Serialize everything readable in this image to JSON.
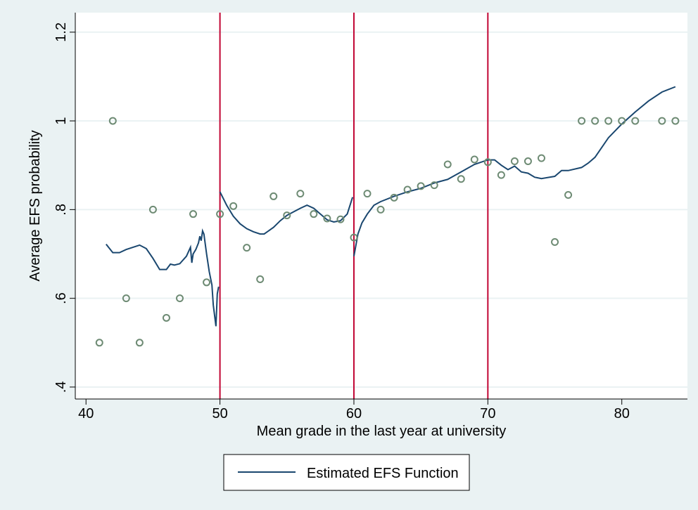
{
  "chart_data": {
    "type": "line",
    "x_label": "Mean grade in the last year at university",
    "y_label": "Average EFS probability",
    "xlim": [
      39.2,
      84.9
    ],
    "ylim": [
      0.373,
      1.244
    ],
    "xticks": [
      40,
      50,
      60,
      70,
      80
    ],
    "yticks": [
      {
        "value": 0.4,
        "label": ".4"
      },
      {
        "value": 0.6,
        "label": ".6"
      },
      {
        "value": 0.8,
        "label": ".8"
      },
      1,
      1.2
    ],
    "grid": true,
    "vlines": [
      50,
      60,
      70
    ],
    "vline_color": "#c10534",
    "series": [
      {
        "name": "Estimated EFS Function",
        "type": "line",
        "color": "#1a476f",
        "x": [
          41.5,
          42,
          42.5,
          43,
          44,
          44.5,
          45,
          45.5,
          46,
          46.3,
          46.6,
          47,
          47.5,
          47.8,
          47.9,
          48,
          48.2,
          48.4,
          48.5,
          48.6,
          48.7,
          48.8,
          49,
          49.2,
          49.4,
          49.5,
          49.7,
          49.8,
          49.9,
          null,
          50,
          50.5,
          51,
          51.5,
          52,
          52.5,
          53,
          53.3,
          54,
          54.5,
          55,
          55.5,
          56,
          56.5,
          57,
          57.5,
          58,
          58.5,
          59,
          59.5,
          59.9,
          null,
          60,
          60.3,
          60.6,
          61,
          61.5,
          62,
          63,
          64,
          65,
          66,
          67,
          68,
          69,
          70,
          70.5,
          71,
          71.5,
          72,
          72.5,
          73,
          73.5,
          74,
          75,
          75.5,
          76,
          77,
          77.5,
          78,
          79,
          80,
          81,
          82,
          83,
          84
        ],
        "values": [
          0.722,
          0.703,
          0.703,
          0.71,
          0.72,
          0.712,
          0.69,
          0.665,
          0.665,
          0.677,
          0.675,
          0.678,
          0.695,
          0.715,
          0.68,
          0.7,
          0.71,
          0.725,
          0.74,
          0.73,
          0.752,
          0.745,
          0.7,
          0.66,
          0.63,
          0.585,
          0.537,
          0.61,
          0.626,
          null,
          0.84,
          0.81,
          0.785,
          0.768,
          0.757,
          0.75,
          0.745,
          0.745,
          0.76,
          0.775,
          0.787,
          0.795,
          0.803,
          0.81,
          0.803,
          0.79,
          0.777,
          0.772,
          0.775,
          0.79,
          0.828,
          null,
          0.695,
          0.745,
          0.77,
          0.79,
          0.81,
          0.818,
          0.83,
          0.84,
          0.848,
          0.86,
          0.868,
          0.885,
          0.902,
          0.912,
          0.912,
          0.9,
          0.89,
          0.898,
          0.885,
          0.882,
          0.873,
          0.87,
          0.875,
          0.888,
          0.888,
          0.895,
          0.905,
          0.918,
          0.962,
          0.993,
          1.02,
          1.045,
          1.065,
          1.077
        ]
      },
      {
        "type": "scatter",
        "color": "#6e8b74",
        "x": [
          41,
          42,
          43,
          44,
          45,
          46,
          47,
          48,
          49,
          50,
          51,
          52,
          53,
          54,
          55,
          56,
          57,
          58,
          59,
          60,
          61,
          62,
          63,
          64,
          65,
          66,
          67,
          68,
          69,
          70,
          71,
          72,
          73,
          74,
          75,
          76,
          77,
          78,
          79,
          80,
          81,
          83,
          84
        ],
        "values": [
          0.5,
          1.0,
          0.6,
          0.5,
          0.8,
          0.556,
          0.6,
          0.79,
          0.636,
          0.79,
          0.808,
          0.714,
          0.643,
          0.83,
          0.787,
          0.836,
          0.79,
          0.78,
          0.778,
          0.737,
          0.836,
          0.8,
          0.827,
          0.845,
          0.853,
          0.855,
          0.902,
          0.869,
          0.913,
          0.907,
          0.878,
          0.909,
          0.909,
          0.916,
          0.727,
          0.833,
          1,
          1,
          1,
          1,
          1,
          1,
          1
        ]
      }
    ]
  }
}
